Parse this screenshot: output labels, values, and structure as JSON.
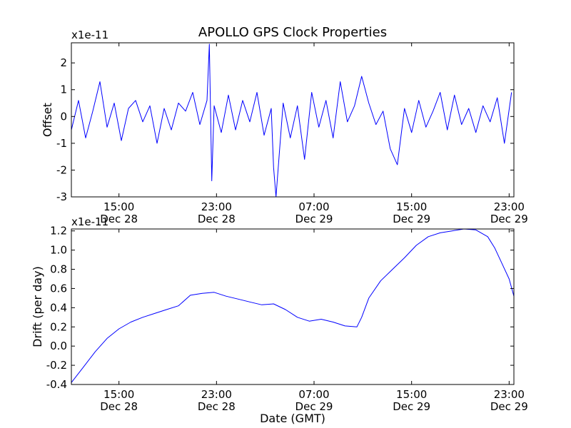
{
  "title": "APOLLO GPS Clock Properties",
  "series_color": "#0000ff",
  "chart_data": [
    {
      "type": "line",
      "title": "APOLLO GPS Clock Properties",
      "xlabel": "",
      "ylabel": "Offset",
      "y_multiplier": "x1e-11",
      "ylim": [
        -3,
        2.75
      ],
      "yticks": [
        -3,
        -2,
        -1,
        0,
        1,
        2
      ],
      "ytick_labels": [
        "-3",
        "-2",
        "-1",
        "0",
        "1",
        "2"
      ],
      "xlim": [
        0,
        18.6
      ],
      "xticks": [
        {
          "x": 2,
          "time": "15:00",
          "date": "Dec 28"
        },
        {
          "x": 6.1,
          "time": "23:00",
          "date": "Dec 28"
        },
        {
          "x": 10.2,
          "time": "07:00",
          "date": "Dec 29"
        },
        {
          "x": 14.3,
          "time": "15:00",
          "date": "Dec 29"
        },
        {
          "x": 18.4,
          "time": "23:00",
          "date": "Dec 29"
        }
      ],
      "series": [
        {
          "x": [
            0,
            0.3,
            0.6,
            0.9,
            1.2,
            1.5,
            1.8,
            2.1,
            2.4,
            2.7,
            3.0,
            3.3,
            3.6,
            3.9,
            4.2,
            4.5,
            4.8,
            5.1,
            5.4,
            5.7,
            5.8,
            5.9,
            6.0,
            6.3,
            6.6,
            6.9,
            7.2,
            7.5,
            7.8,
            8.1,
            8.4,
            8.5,
            8.6,
            8.9,
            9.2,
            9.5,
            9.8,
            10.1,
            10.4,
            10.7,
            11.0,
            11.3,
            11.6,
            11.9,
            12.2,
            12.5,
            12.8,
            13.1,
            13.4,
            13.7,
            14.0,
            14.3,
            14.6,
            14.9,
            15.2,
            15.5,
            15.8,
            16.1,
            16.4,
            16.7,
            17.0,
            17.3,
            17.6,
            17.9,
            18.2,
            18.5
          ],
          "y": [
            -0.5,
            0.6,
            -0.8,
            0.2,
            1.3,
            -0.4,
            0.5,
            -0.9,
            0.3,
            0.6,
            -0.2,
            0.4,
            -1.0,
            0.3,
            -0.5,
            0.5,
            0.2,
            0.9,
            -0.3,
            0.6,
            2.7,
            -2.4,
            0.4,
            -0.6,
            0.8,
            -0.5,
            0.6,
            -0.2,
            0.9,
            -0.7,
            0.3,
            -1.9,
            -3.0,
            0.5,
            -0.8,
            0.4,
            -1.6,
            0.9,
            -0.4,
            0.6,
            -0.8,
            1.3,
            -0.2,
            0.4,
            1.5,
            0.5,
            -0.3,
            0.2,
            -1.2,
            -1.8,
            0.3,
            -0.6,
            0.6,
            -0.4,
            0.2,
            0.9,
            -0.5,
            0.8,
            -0.3,
            0.3,
            -0.6,
            0.4,
            -0.2,
            0.7,
            -1.0,
            0.9
          ]
        }
      ]
    },
    {
      "type": "line",
      "title": "",
      "xlabel": "Date (GMT)",
      "ylabel": "Drift (per day)",
      "y_multiplier": "x1e-11",
      "ylim": [
        -0.4,
        1.22
      ],
      "yticks": [
        -0.4,
        -0.2,
        0.0,
        0.2,
        0.4,
        0.6,
        0.8,
        1.0,
        1.2
      ],
      "ytick_labels": [
        "-0.4",
        "-0.2",
        "0.0",
        "0.2",
        "0.4",
        "0.6",
        "0.8",
        "1.0",
        "1.2"
      ],
      "xlim": [
        0,
        18.6
      ],
      "xticks": [
        {
          "x": 2,
          "time": "15:00",
          "date": "Dec 28"
        },
        {
          "x": 6.1,
          "time": "23:00",
          "date": "Dec 28"
        },
        {
          "x": 10.2,
          "time": "07:00",
          "date": "Dec 29"
        },
        {
          "x": 14.3,
          "time": "15:00",
          "date": "Dec 29"
        },
        {
          "x": 18.4,
          "time": "23:00",
          "date": "Dec 29"
        }
      ],
      "series": [
        {
          "x": [
            0,
            0.5,
            1.0,
            1.5,
            2.0,
            2.5,
            3.0,
            3.5,
            4.0,
            4.5,
            5.0,
            5.5,
            6.0,
            6.5,
            7.0,
            7.5,
            8.0,
            8.5,
            9.0,
            9.5,
            10.0,
            10.5,
            11.0,
            11.5,
            12.0,
            12.2,
            12.5,
            13.0,
            13.5,
            14.0,
            14.5,
            15.0,
            15.5,
            16.0,
            16.5,
            17.0,
            17.5,
            17.8,
            18.1,
            18.4,
            18.6
          ],
          "y": [
            -0.38,
            -0.22,
            -0.06,
            0.08,
            0.18,
            0.25,
            0.3,
            0.34,
            0.38,
            0.42,
            0.53,
            0.55,
            0.56,
            0.52,
            0.49,
            0.46,
            0.43,
            0.44,
            0.38,
            0.3,
            0.26,
            0.28,
            0.25,
            0.21,
            0.2,
            0.3,
            0.5,
            0.68,
            0.8,
            0.92,
            1.05,
            1.14,
            1.18,
            1.2,
            1.22,
            1.21,
            1.14,
            1.02,
            0.86,
            0.7,
            0.52
          ]
        }
      ]
    }
  ]
}
